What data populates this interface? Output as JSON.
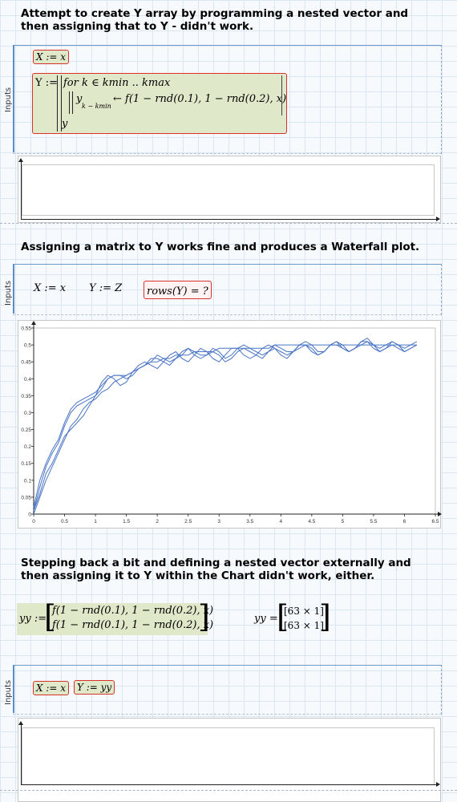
{
  "section1": {
    "heading": "Attempt to create Y array by programming a nested vector and then assigning that to Y - didn't work.",
    "region_label": "Inputs",
    "x_def": "X := x",
    "y_def_lhs": "Y :=",
    "for_line": "for k ∈ kmin .. kmax",
    "assign_var": "y",
    "assign_sub": "k − kmin",
    "assign_rhs": "← f(1 − rnd(0.1), 1 − rnd(0.2), x)",
    "return_var": "y"
  },
  "section2": {
    "heading": "Assigning a matrix to Y works fine and produces a Waterfall plot.",
    "region_label": "Inputs",
    "x_def": "X := x",
    "y_def": "Y := Z",
    "rows_eval": "rows(Y) = ?"
  },
  "chart_data": {
    "type": "line",
    "title": "",
    "xlabel": "",
    "ylabel": "",
    "xlim": [
      0,
      6.5
    ],
    "ylim": [
      0,
      0.55
    ],
    "x_ticks": [
      "0",
      "0.5",
      "1",
      "1.5",
      "2",
      "2.5",
      "3",
      "3.5",
      "4",
      "4.5",
      "5",
      "5.5",
      "6",
      "6.5"
    ],
    "y_ticks": [
      "0",
      "0.05",
      "0.1",
      "0.15",
      "0.2",
      "0.25",
      "0.3",
      "0.35",
      "0.4",
      "0.45",
      "0.5",
      "0.55"
    ],
    "x": [
      0,
      0.1,
      0.2,
      0.3,
      0.4,
      0.5,
      0.6,
      0.7,
      0.8,
      0.9,
      1.0,
      1.1,
      1.2,
      1.3,
      1.4,
      1.5,
      1.6,
      1.7,
      1.8,
      1.9,
      2.0,
      2.1,
      2.2,
      2.3,
      2.4,
      2.5,
      2.6,
      2.7,
      2.8,
      2.9,
      3.0,
      3.1,
      3.2,
      3.3,
      3.4,
      3.5,
      3.6,
      3.7,
      3.8,
      3.9,
      4.0,
      4.1,
      4.2,
      4.3,
      4.4,
      4.5,
      4.6,
      4.7,
      4.8,
      4.9,
      5.0,
      5.1,
      5.2,
      5.3,
      5.4,
      5.5,
      5.6,
      5.7,
      5.8,
      5.9,
      6.0,
      6.1,
      6.2
    ],
    "series": [
      {
        "values": [
          0.01,
          0.08,
          0.14,
          0.18,
          0.21,
          0.26,
          0.3,
          0.32,
          0.33,
          0.34,
          0.35,
          0.37,
          0.4,
          0.41,
          0.41,
          0.4,
          0.41,
          0.43,
          0.44,
          0.45,
          0.47,
          0.46,
          0.45,
          0.46,
          0.47,
          0.49,
          0.48,
          0.47,
          0.47,
          0.49,
          0.48,
          0.46,
          0.47,
          0.49,
          0.5,
          0.49,
          0.48,
          0.47,
          0.48,
          0.5,
          0.49,
          0.48,
          0.48,
          0.5,
          0.51,
          0.5,
          0.48,
          0.48,
          0.5,
          0.51,
          0.5,
          0.48,
          0.49,
          0.51,
          0.52,
          0.5,
          0.49,
          0.5,
          0.51,
          0.5,
          0.48,
          0.49,
          0.5
        ]
      },
      {
        "values": [
          0.02,
          0.1,
          0.15,
          0.19,
          0.22,
          0.27,
          0.31,
          0.33,
          0.34,
          0.35,
          0.36,
          0.38,
          0.4,
          0.41,
          0.41,
          0.41,
          0.42,
          0.43,
          0.44,
          0.46,
          0.46,
          0.45,
          0.44,
          0.46,
          0.48,
          0.49,
          0.47,
          0.46,
          0.47,
          0.48,
          0.47,
          0.45,
          0.46,
          0.48,
          0.49,
          0.48,
          0.47,
          0.46,
          0.48,
          0.49,
          0.48,
          0.47,
          0.48,
          0.49,
          0.5,
          0.49,
          0.47,
          0.48,
          0.5,
          0.5,
          0.49,
          0.48,
          0.49,
          0.5,
          0.51,
          0.5,
          0.48,
          0.49,
          0.5,
          0.49,
          0.48,
          0.49,
          0.5
        ]
      },
      {
        "values": [
          0.0,
          0.05,
          0.1,
          0.14,
          0.18,
          0.22,
          0.26,
          0.28,
          0.31,
          0.33,
          0.34,
          0.36,
          0.37,
          0.39,
          0.4,
          0.41,
          0.42,
          0.43,
          0.44,
          0.45,
          0.45,
          0.46,
          0.46,
          0.47,
          0.47,
          0.47,
          0.48,
          0.48,
          0.48,
          0.48,
          0.49,
          0.49,
          0.49,
          0.49,
          0.49,
          0.49,
          0.49,
          0.49,
          0.49,
          0.5,
          0.5,
          0.5,
          0.5,
          0.5,
          0.5,
          0.5,
          0.5,
          0.5,
          0.5,
          0.5,
          0.5,
          0.5,
          0.5,
          0.5,
          0.5,
          0.5,
          0.5,
          0.5,
          0.5,
          0.5,
          0.5,
          0.5,
          0.5
        ]
      },
      {
        "values": [
          0.01,
          0.06,
          0.12,
          0.15,
          0.19,
          0.23,
          0.25,
          0.27,
          0.29,
          0.32,
          0.35,
          0.39,
          0.41,
          0.4,
          0.38,
          0.39,
          0.42,
          0.44,
          0.45,
          0.44,
          0.43,
          0.45,
          0.47,
          0.48,
          0.46,
          0.45,
          0.47,
          0.49,
          0.48,
          0.46,
          0.45,
          0.47,
          0.49,
          0.49,
          0.47,
          0.46,
          0.47,
          0.49,
          0.5,
          0.49,
          0.47,
          0.46,
          0.48,
          0.5,
          0.5,
          0.48,
          0.47,
          0.48,
          0.5,
          0.51,
          0.49,
          0.48,
          0.49,
          0.51,
          0.51,
          0.49,
          0.48,
          0.49,
          0.51,
          0.5,
          0.49,
          0.5,
          0.51
        ]
      }
    ],
    "grid": false,
    "color": "#4a74c4"
  },
  "section3": {
    "heading": "Stepping back a bit and defining a nested vector externally and then assigning it to Y within the Chart didn't work, either.",
    "yy_lhs": "yy :=",
    "yy_row1": "f(1 − rnd(0.1), 1 − rnd(0.2), x)",
    "yy_row2": "f(1 − rnd(0.1), 1 − rnd(0.2), x)",
    "yy_eval_lhs": "yy =",
    "yy_eval_row1": "[63 × 1]",
    "yy_eval_row2": "[63 × 1]"
  },
  "section4": {
    "region_label": "Inputs",
    "x_def": "X := x",
    "y_def": "Y := yy"
  }
}
